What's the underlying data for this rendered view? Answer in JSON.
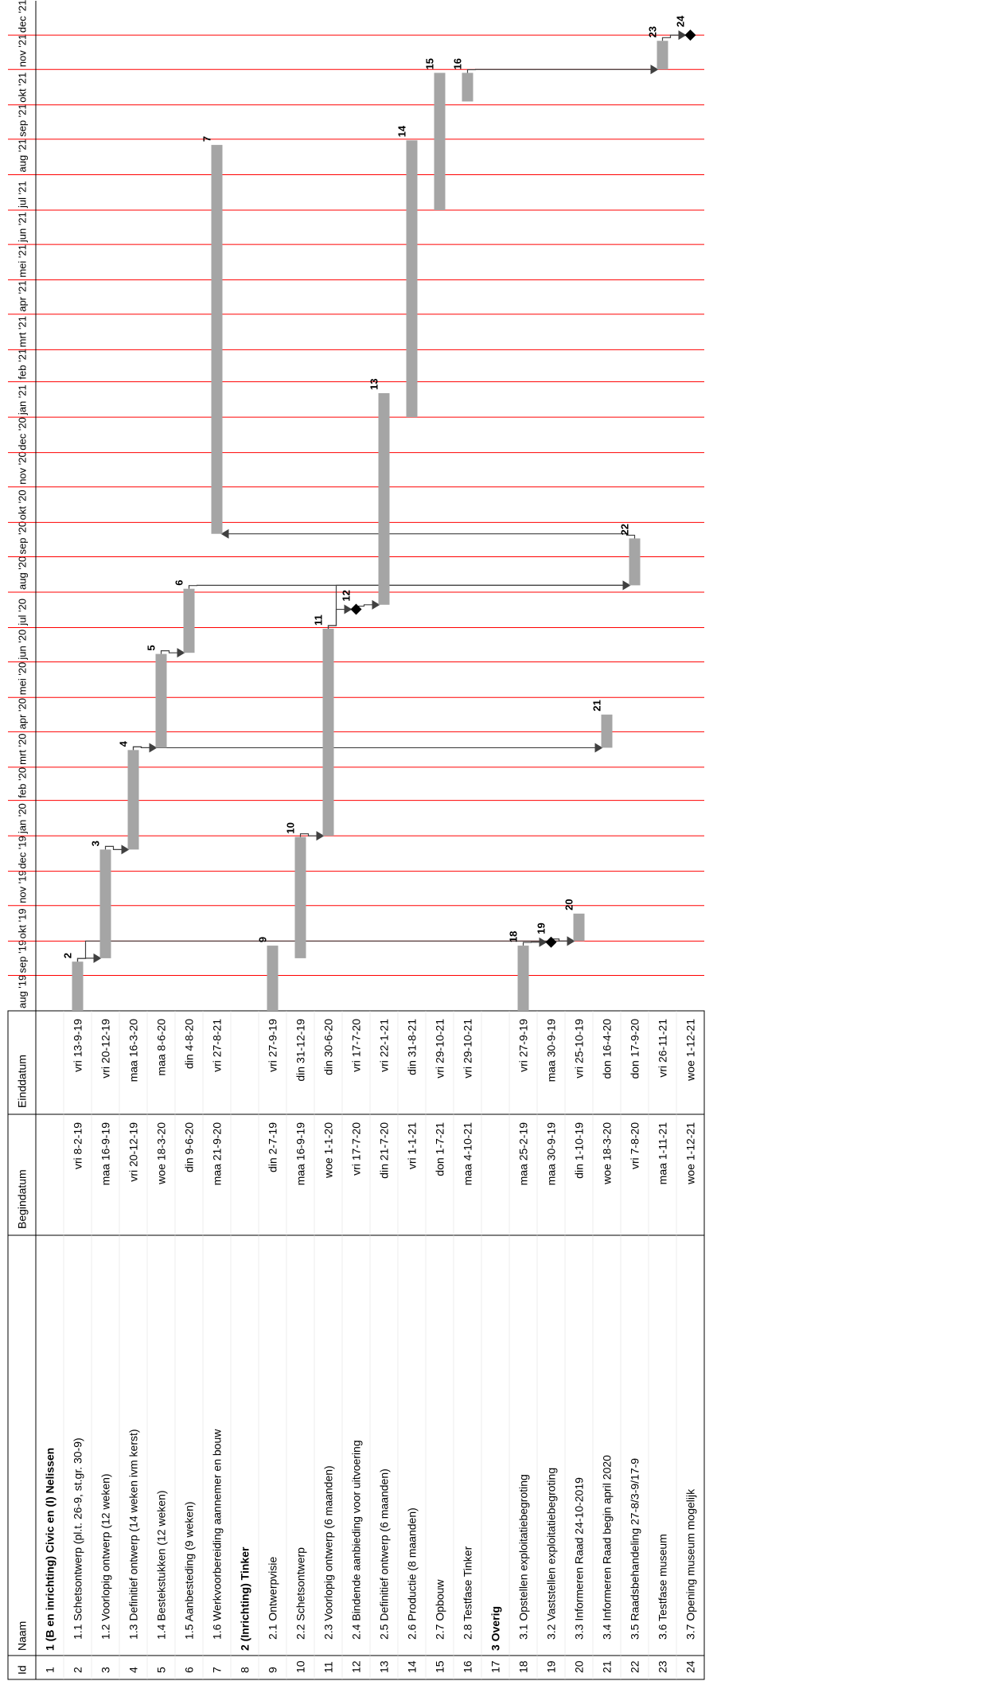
{
  "table": {
    "headers": {
      "id": "Id",
      "name": "Naam",
      "start": "Begindatum",
      "end": "Einddatum"
    },
    "rows": [
      {
        "id": "1",
        "name": "1 (B en inrichting) Civic en (I) Nelissen",
        "start": "",
        "end": "",
        "bold": true
      },
      {
        "id": "2",
        "name": "1.1 Schetsontwerp (pl.t. 26-9, st.gr. 30-9)",
        "start": "vri 8-2-19",
        "end": "vri 13-9-19"
      },
      {
        "id": "3",
        "name": "1.2 Voorlopig ontwerp (12 weken)",
        "start": "maa 16-9-19",
        "end": "vri 20-12-19"
      },
      {
        "id": "4",
        "name": "1.3 Definitief ontwerp (14 weken ivm kerst)",
        "start": "vri 20-12-19",
        "end": "maa 16-3-20"
      },
      {
        "id": "5",
        "name": "1.4 Bestekstukken (12 weken)",
        "start": "woe 18-3-20",
        "end": "maa 8-6-20"
      },
      {
        "id": "6",
        "name": "1.5 Aanbesteding (9 weken)",
        "start": "din 9-6-20",
        "end": "din 4-8-20"
      },
      {
        "id": "7",
        "name": "1.6 Werkvoorbereiding aannemer en bouw",
        "start": "maa 21-9-20",
        "end": "vri 27-8-21"
      },
      {
        "id": "8",
        "name": "2 (Inrichting) Tinker",
        "start": "",
        "end": "",
        "bold": true
      },
      {
        "id": "9",
        "name": "2.1 Ontwerpvisie",
        "start": "din 2-7-19",
        "end": "vri 27-9-19"
      },
      {
        "id": "10",
        "name": "2.2 Schetsontwerp",
        "start": "maa 16-9-19",
        "end": "din 31-12-19"
      },
      {
        "id": "11",
        "name": "2.3 Voorlopig ontwerp (6 maanden)",
        "start": "woe 1-1-20",
        "end": "din 30-6-20"
      },
      {
        "id": "12",
        "name": "2.4 Bindende aanbieding voor uitvoering",
        "start": "vri 17-7-20",
        "end": "vri 17-7-20"
      },
      {
        "id": "13",
        "name": "2.5 Definitief ontwerp (6 maanden)",
        "start": "din 21-7-20",
        "end": "vri 22-1-21"
      },
      {
        "id": "14",
        "name": "2.6 Productie (8 maanden)",
        "start": "vri 1-1-21",
        "end": "din 31-8-21"
      },
      {
        "id": "15",
        "name": "2.7 Opbouw",
        "start": "don 1-7-21",
        "end": "vri 29-10-21"
      },
      {
        "id": "16",
        "name": "2.8 Testfase Tinker",
        "start": "maa 4-10-21",
        "end": "vri 29-10-21"
      },
      {
        "id": "17",
        "name": "3 Overig",
        "start": "",
        "end": "",
        "bold": true
      },
      {
        "id": "18",
        "name": "3.1 Opstellen exploitatiebegroting",
        "start": "maa 25-2-19",
        "end": "vri 27-9-19"
      },
      {
        "id": "19",
        "name": "3.2 Vaststellen exploitatiebegroting",
        "start": "maa 30-9-19",
        "end": "maa 30-9-19"
      },
      {
        "id": "20",
        "name": "3.3 Informeren Raad 24-10-2019",
        "start": "din 1-10-19",
        "end": "vri 25-10-19"
      },
      {
        "id": "21",
        "name": "3.4 Informeren Raad begin april 2020",
        "start": "woe 18-3-20",
        "end": "don 16-4-20"
      },
      {
        "id": "22",
        "name": "3.5 Raadsbehandeling 27-8/3-9/17-9",
        "start": "vri 7-8-20",
        "end": "don 17-9-20"
      },
      {
        "id": "23",
        "name": "3.6 Testfase museum",
        "start": "maa 1-11-21",
        "end": "vri 26-11-21"
      },
      {
        "id": "24",
        "name": "3.7 Opening museum mogelijk",
        "start": "woe 1-12-21",
        "end": "woe 1-12-21"
      }
    ]
  },
  "chart_data": {
    "type": "gantt",
    "months": [
      "aug '19",
      "sep '19",
      "okt '19",
      "nov '19",
      "dec '19",
      "jan '20",
      "feb '20",
      "mrt '20",
      "apr '20",
      "mei '20",
      "jun '20",
      "jul '20",
      "aug '20",
      "sep '20",
      "okt '20",
      "nov '20",
      "dec '20",
      "jan '21",
      "feb '21",
      "mrt '21",
      "apr '21",
      "mei '21",
      "jun '21",
      "jul '21",
      "aug '21",
      "sep '21",
      "okt '21",
      "nov '21",
      "dec '21"
    ],
    "axis_start": "2019-08-01",
    "axis_end": "2021-12-31",
    "tasks": [
      {
        "id": "2",
        "start": "2019-08-01",
        "end": "2019-09-13"
      },
      {
        "id": "3",
        "start": "2019-09-16",
        "end": "2019-12-20"
      },
      {
        "id": "4",
        "start": "2019-12-20",
        "end": "2020-03-16"
      },
      {
        "id": "5",
        "start": "2020-03-18",
        "end": "2020-06-08"
      },
      {
        "id": "6",
        "start": "2020-06-09",
        "end": "2020-08-04"
      },
      {
        "id": "7",
        "start": "2020-09-21",
        "end": "2021-08-27"
      },
      {
        "id": "9",
        "start": "2019-08-01",
        "end": "2019-09-27"
      },
      {
        "id": "10",
        "start": "2019-09-16",
        "end": "2019-12-31"
      },
      {
        "id": "11",
        "start": "2020-01-01",
        "end": "2020-06-30"
      },
      {
        "id": "12",
        "start": "2020-07-17",
        "end": "2020-07-17",
        "milestone": true
      },
      {
        "id": "13",
        "start": "2020-07-21",
        "end": "2021-01-22"
      },
      {
        "id": "14",
        "start": "2021-01-01",
        "end": "2021-08-31"
      },
      {
        "id": "15",
        "start": "2021-07-01",
        "end": "2021-10-29"
      },
      {
        "id": "16",
        "start": "2021-10-04",
        "end": "2021-10-29"
      },
      {
        "id": "18",
        "start": "2019-08-01",
        "end": "2019-09-27"
      },
      {
        "id": "19",
        "start": "2019-09-30",
        "end": "2019-09-30",
        "milestone": true
      },
      {
        "id": "20",
        "start": "2019-10-01",
        "end": "2019-10-25"
      },
      {
        "id": "21",
        "start": "2020-03-18",
        "end": "2020-04-16"
      },
      {
        "id": "22",
        "start": "2020-08-07",
        "end": "2020-09-17"
      },
      {
        "id": "23",
        "start": "2021-11-01",
        "end": "2021-11-26"
      },
      {
        "id": "24",
        "start": "2021-12-01",
        "end": "2021-12-01",
        "milestone": true
      }
    ],
    "links": [
      [
        "2",
        "3"
      ],
      [
        "3",
        "4"
      ],
      [
        "4",
        "5"
      ],
      [
        "5",
        "6"
      ],
      [
        "4",
        "21"
      ],
      [
        "6",
        "22"
      ],
      [
        "22",
        "7"
      ],
      [
        "10",
        "11"
      ],
      [
        "11",
        "12"
      ],
      [
        "12",
        "13"
      ],
      [
        "11",
        "22"
      ],
      [
        "2",
        "20"
      ],
      [
        "18",
        "19"
      ],
      [
        "19",
        "20"
      ],
      [
        "16",
        "23"
      ],
      [
        "23",
        "24"
      ]
    ],
    "colors": {
      "bar": "#a5a5a5",
      "gridline": "#ff0000",
      "link": "#404040",
      "milestone": "#000000"
    }
  }
}
